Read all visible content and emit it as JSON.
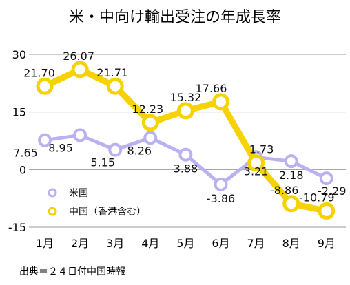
{
  "chart_data": {
    "type": "line",
    "title": "米・中向け輸出受注の年成長率",
    "categories": [
      "1月",
      "2月",
      "3月",
      "4月",
      "5月",
      "6月",
      "7月",
      "8月",
      "9月"
    ],
    "ylim": [
      -15,
      30
    ],
    "yticks": [
      "30",
      "15",
      "0",
      "-15"
    ],
    "grid": true,
    "legend_position": "bottom-left",
    "series": [
      {
        "name": "米国",
        "color": "#b9b1f2",
        "values": [
          7.65,
          8.95,
          5.15,
          8.26,
          3.88,
          -3.86,
          3.21,
          2.18,
          -2.29
        ],
        "labels": [
          "7.65",
          "8.95",
          "5.15",
          "8.26",
          "3.88",
          "-3.86",
          "3.21",
          "2.18",
          "-2.29"
        ]
      },
      {
        "name": "中国（香港含む）",
        "color": "#f6d200",
        "values": [
          21.7,
          26.07,
          21.71,
          12.23,
          15.32,
          17.66,
          1.73,
          -8.86,
          -10.79
        ],
        "labels": [
          "21.70",
          "26.07",
          "21.71",
          "12.23",
          "15.32",
          "17.66",
          "1.73",
          "-8.86",
          "-10.79"
        ]
      }
    ],
    "source": "出典＝２４日付中国時報"
  }
}
